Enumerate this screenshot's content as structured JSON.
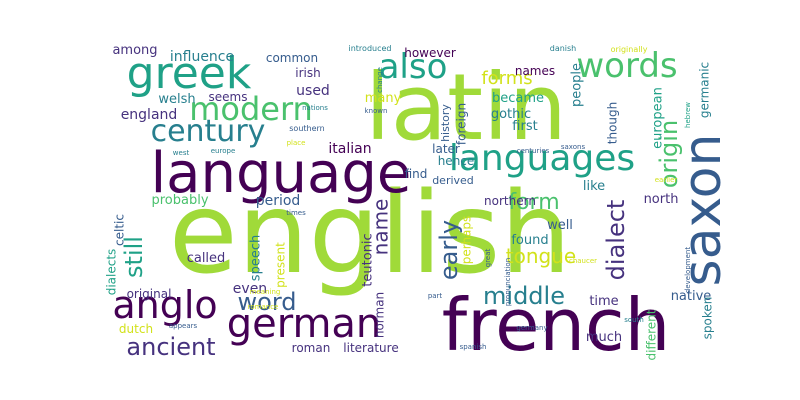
{
  "palette": {
    "dark_purple": "#440154",
    "indigo": "#46327e",
    "blue": "#365c8d",
    "steel": "#277f8e",
    "teal": "#1fa187",
    "green": "#4ac16d",
    "lime": "#a0da39",
    "yellow": "#d2e21b"
  },
  "words": [
    {
      "text": "english",
      "color": "#a0da39"
    },
    {
      "text": "latin",
      "color": "#a0da39"
    },
    {
      "text": "french",
      "color": "#440154"
    },
    {
      "text": "language",
      "color": "#440154"
    },
    {
      "text": "greek",
      "color": "#1fa187"
    },
    {
      "text": "languages",
      "color": "#1fa187"
    },
    {
      "text": "german",
      "color": "#440154"
    },
    {
      "text": "saxon",
      "color": "#365c8d"
    },
    {
      "text": "anglo",
      "color": "#440154"
    },
    {
      "text": "also",
      "color": "#1fa187"
    },
    {
      "text": "words",
      "color": "#4ac16d"
    },
    {
      "text": "modern",
      "color": "#4ac16d"
    },
    {
      "text": "century",
      "color": "#277f8e"
    },
    {
      "text": "ancient",
      "color": "#46327e"
    },
    {
      "text": "word",
      "color": "#365c8d"
    },
    {
      "text": "middle",
      "color": "#277f8e"
    },
    {
      "text": "dialect",
      "color": "#46327e"
    },
    {
      "text": "origin",
      "color": "#4ac16d"
    },
    {
      "text": "early",
      "color": "#365c8d"
    },
    {
      "text": "form",
      "color": "#4ac16d"
    },
    {
      "text": "still",
      "color": "#1fa187"
    },
    {
      "text": "name",
      "color": "#46327e"
    },
    {
      "text": "tongue",
      "color": "#d2e21b"
    },
    {
      "text": "forms",
      "color": "#d2e21b"
    },
    {
      "text": "england",
      "color": "#46327e"
    },
    {
      "text": "used",
      "color": "#46327e"
    },
    {
      "text": "influence",
      "color": "#277f8e"
    },
    {
      "text": "among",
      "color": "#46327e"
    },
    {
      "text": "common",
      "color": "#365c8d"
    },
    {
      "text": "however",
      "color": "#440154"
    },
    {
      "text": "irish",
      "color": "#46327e"
    },
    {
      "text": "welsh",
      "color": "#277f8e"
    },
    {
      "text": "seems",
      "color": "#46327e"
    },
    {
      "text": "names",
      "color": "#440154"
    },
    {
      "text": "people",
      "color": "#277f8e"
    },
    {
      "text": "became",
      "color": "#1fa187"
    },
    {
      "text": "gothic",
      "color": "#277f8e"
    },
    {
      "text": "first",
      "color": "#277f8e"
    },
    {
      "text": "though",
      "color": "#365c8d"
    },
    {
      "text": "european",
      "color": "#1fa187"
    },
    {
      "text": "germanic",
      "color": "#277f8e"
    },
    {
      "text": "many",
      "color": "#d2e21b"
    },
    {
      "text": "italian",
      "color": "#440154"
    },
    {
      "text": "later",
      "color": "#365c8d"
    },
    {
      "text": "hence",
      "color": "#277f8e"
    },
    {
      "text": "find",
      "color": "#365c8d"
    },
    {
      "text": "derived",
      "color": "#365c8d"
    },
    {
      "text": "foreign",
      "color": "#365c8d"
    },
    {
      "text": "history",
      "color": "#365c8d"
    },
    {
      "text": "period",
      "color": "#365c8d"
    },
    {
      "text": "probably",
      "color": "#4ac16d"
    },
    {
      "text": "celtic",
      "color": "#365c8d"
    },
    {
      "text": "teutonic",
      "color": "#46327e"
    },
    {
      "text": "northern",
      "color": "#46327e"
    },
    {
      "text": "perhaps",
      "color": "#d2e21b"
    },
    {
      "text": "like",
      "color": "#277f8e"
    },
    {
      "text": "well",
      "color": "#365c8d"
    },
    {
      "text": "found",
      "color": "#277f8e"
    },
    {
      "text": "north",
      "color": "#46327e"
    },
    {
      "text": "called",
      "color": "#46327e"
    },
    {
      "text": "speech",
      "color": "#277f8e"
    },
    {
      "text": "present",
      "color": "#d2e21b"
    },
    {
      "text": "even",
      "color": "#46327e"
    },
    {
      "text": "dialects",
      "color": "#1fa187"
    },
    {
      "text": "original",
      "color": "#46327e"
    },
    {
      "text": "dutch",
      "color": "#d2e21b"
    },
    {
      "text": "roman",
      "color": "#46327e"
    },
    {
      "text": "literature",
      "color": "#46327e"
    },
    {
      "text": "norman",
      "color": "#46327e"
    },
    {
      "text": "time",
      "color": "#46327e"
    },
    {
      "text": "much",
      "color": "#46327e"
    },
    {
      "text": "different",
      "color": "#4ac16d"
    },
    {
      "text": "native",
      "color": "#365c8d"
    },
    {
      "text": "spoken",
      "color": "#277f8e"
    },
    {
      "text": "introduced",
      "color": "#277f8e"
    },
    {
      "text": "change",
      "color": "#277f8e"
    },
    {
      "text": "nations",
      "color": "#277f8e"
    },
    {
      "text": "known",
      "color": "#365c8d"
    },
    {
      "text": "southern",
      "color": "#365c8d"
    },
    {
      "text": "west",
      "color": "#277f8e"
    },
    {
      "text": "europe",
      "color": "#277f8e"
    },
    {
      "text": "place",
      "color": "#d2e21b"
    },
    {
      "text": "centuries",
      "color": "#365c8d"
    },
    {
      "text": "saxons",
      "color": "#365c8d"
    },
    {
      "text": "danish",
      "color": "#277f8e"
    },
    {
      "text": "originally",
      "color": "#d2e21b"
    },
    {
      "text": "hebrew",
      "color": "#1fa187"
    },
    {
      "text": "development",
      "color": "#365c8d"
    },
    {
      "text": "earlier",
      "color": "#d2e21b"
    },
    {
      "text": "pronunciation",
      "color": "#365c8d"
    },
    {
      "text": "chaucer",
      "color": "#d2e21b"
    },
    {
      "text": "great",
      "color": "#365c8d"
    },
    {
      "text": "times",
      "color": "#365c8d"
    },
    {
      "text": "meaning",
      "color": "#d2e21b"
    },
    {
      "text": "romance",
      "color": "#d2e21b"
    },
    {
      "text": "part",
      "color": "#365c8d"
    },
    {
      "text": "appears",
      "color": "#365c8d"
    },
    {
      "text": "germany",
      "color": "#365c8d"
    },
    {
      "text": "south",
      "color": "#277f8e"
    },
    {
      "text": "spanish",
      "color": "#365c8d"
    }
  ]
}
